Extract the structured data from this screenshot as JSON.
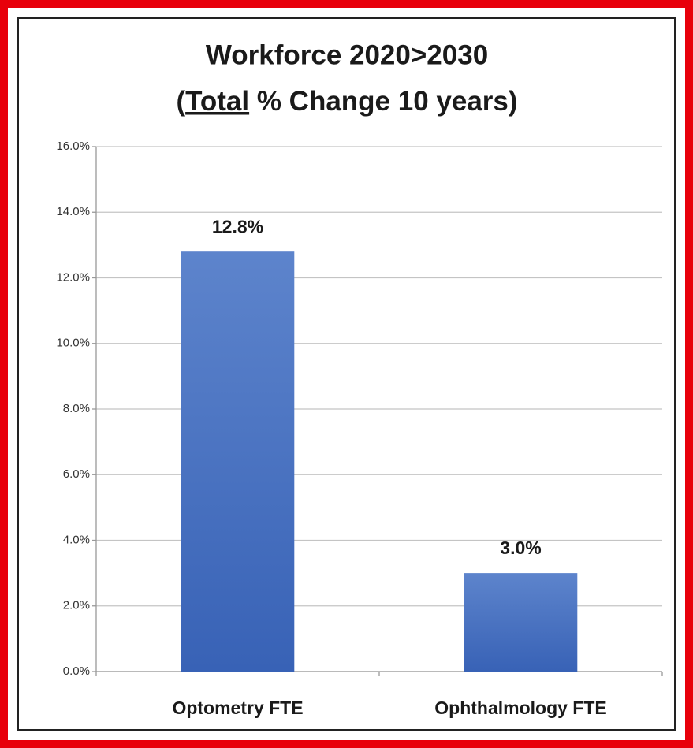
{
  "chart_data": {
    "type": "bar",
    "title": "Workforce 2020>2030",
    "subtitle_parts": [
      "(",
      "Total",
      " % Change 10 years)"
    ],
    "categories": [
      "Optometry FTE",
      "Ophthalmology FTE"
    ],
    "values": [
      12.8,
      3.0
    ],
    "value_labels": [
      "12.8%",
      "3.0%"
    ],
    "color": "#4a72c2",
    "ylim": [
      0,
      16
    ],
    "yticks": [
      {
        "value": 0,
        "label": "0.0%"
      },
      {
        "value": 2,
        "label": "2.0%"
      },
      {
        "value": 4,
        "label": "4.0%"
      },
      {
        "value": 6,
        "label": "6.0%"
      },
      {
        "value": 8,
        "label": "8.0%"
      },
      {
        "value": 10,
        "label": "10.0%"
      },
      {
        "value": 12,
        "label": "12.0%"
      },
      {
        "value": 14,
        "label": "14.0%"
      },
      {
        "value": 16,
        "label": "16.0%"
      }
    ],
    "grid": true
  }
}
